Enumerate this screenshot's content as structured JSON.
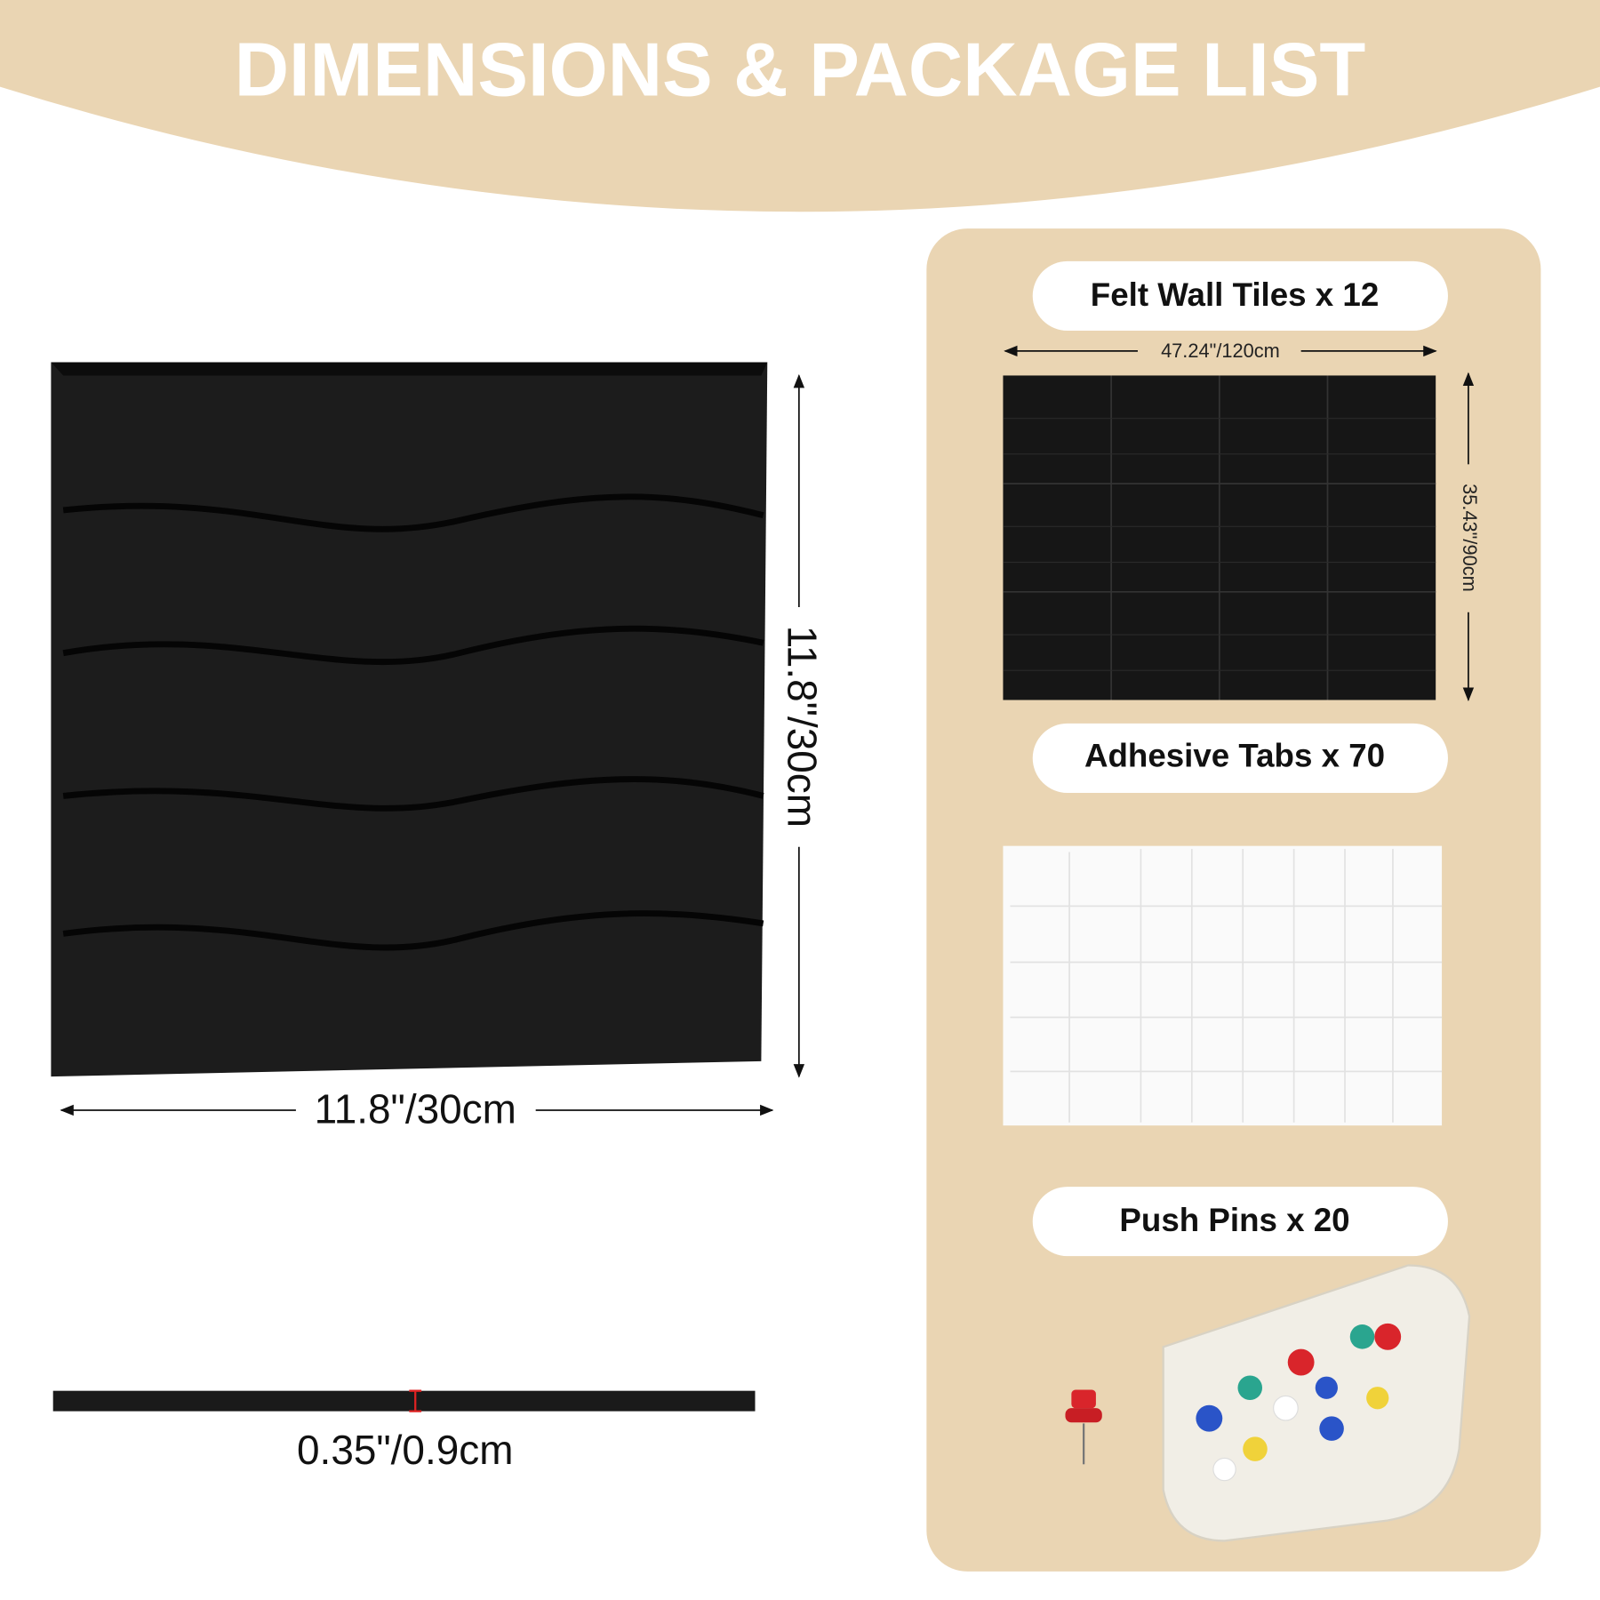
{
  "header": {
    "title": "DIMENSIONS & PACKAGE LIST"
  },
  "tile": {
    "height_label": "11.8\"/30cm",
    "width_label": "11.8\"/30cm",
    "thickness_label": "0.35\"/0.9cm"
  },
  "package": {
    "items": [
      {
        "label": "Felt Wall Tiles x 12"
      },
      {
        "label": "Adhesive Tabs x 70"
      },
      {
        "label": "Push Pins x 20"
      }
    ],
    "tiles_width_label": "47.24\"/120cm",
    "tiles_height_label": "35.43\"/90cm"
  }
}
